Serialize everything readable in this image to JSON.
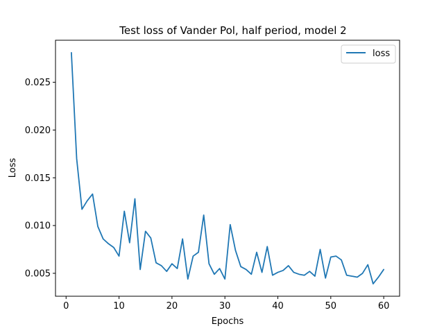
{
  "chart_data": {
    "type": "line",
    "title": "Test loss of Vander Pol, half period, model 2",
    "xlabel": "Epochs",
    "ylabel": "Loss",
    "xlim": [
      -2,
      63
    ],
    "ylim": [
      0.0026,
      0.0294
    ],
    "xticks": [
      0,
      10,
      20,
      30,
      40,
      50,
      60
    ],
    "xtick_labels": [
      "0",
      "10",
      "20",
      "30",
      "40",
      "50",
      "60"
    ],
    "yticks": [
      0.005,
      0.01,
      0.015,
      0.02,
      0.025
    ],
    "ytick_labels": [
      "0.005",
      "0.010",
      "0.015",
      "0.020",
      "0.025"
    ],
    "grid": false,
    "legend_placement": "top-right",
    "series": [
      {
        "name": "loss",
        "color": "#1f77b4",
        "x": [
          1,
          2,
          3,
          4,
          5,
          6,
          7,
          8,
          9,
          10,
          11,
          12,
          13,
          14,
          15,
          16,
          17,
          18,
          19,
          20,
          21,
          22,
          23,
          24,
          25,
          26,
          27,
          28,
          29,
          30,
          31,
          32,
          33,
          34,
          35,
          36,
          37,
          38,
          39,
          40,
          41,
          42,
          43,
          44,
          45,
          46,
          47,
          48,
          49,
          50,
          51,
          52,
          53,
          54,
          55,
          56,
          57,
          58,
          59,
          60
        ],
        "values": [
          0.0281,
          0.017,
          0.0117,
          0.0126,
          0.0133,
          0.0099,
          0.0086,
          0.0081,
          0.0077,
          0.0068,
          0.0115,
          0.0082,
          0.0128,
          0.0054,
          0.0094,
          0.0087,
          0.0061,
          0.0058,
          0.0052,
          0.006,
          0.0055,
          0.0086,
          0.0044,
          0.0068,
          0.0072,
          0.0111,
          0.006,
          0.0049,
          0.0055,
          0.0044,
          0.0101,
          0.0074,
          0.0057,
          0.0054,
          0.0049,
          0.0072,
          0.0051,
          0.0078,
          0.0048,
          0.0051,
          0.0053,
          0.0058,
          0.0051,
          0.0049,
          0.0048,
          0.0052,
          0.0047,
          0.0075,
          0.0045,
          0.0067,
          0.0068,
          0.0064,
          0.0048,
          0.0047,
          0.0046,
          0.005,
          0.0059,
          0.0039,
          0.0046,
          0.0054
        ]
      }
    ]
  }
}
